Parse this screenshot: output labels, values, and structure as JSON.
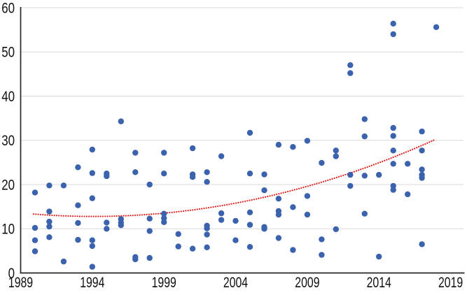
{
  "chart_data": {
    "type": "scatter",
    "title": "",
    "xlabel": "",
    "ylabel": "",
    "x_ticks": [
      1989,
      1994,
      1999,
      2004,
      2009,
      2014,
      2019
    ],
    "y_ticks": [
      0,
      10,
      20,
      30,
      40,
      50,
      60
    ],
    "xlim": [
      1989,
      2019.9
    ],
    "ylim": [
      0,
      60
    ],
    "grid": "horizontal-only",
    "legend": "none",
    "marker_color": "#3A62AD",
    "trend_color": "#DC241F",
    "grid_color": "#D8D8D8",
    "axis_color": "#262626",
    "label_color": "#111111",
    "points": [
      {
        "year": 1990,
        "values": [
          18.2,
          10.2,
          7.4,
          4.9
        ]
      },
      {
        "year": 1991,
        "values": [
          19.8,
          13.9,
          11.6,
          10.5,
          8.1
        ]
      },
      {
        "year": 1992,
        "values": [
          19.8,
          2.6
        ]
      },
      {
        "year": 1993,
        "values": [
          23.9,
          15.3,
          11.3,
          7.5
        ]
      },
      {
        "year": 1994,
        "values": [
          27.9,
          22.6,
          16.9,
          7.4,
          6.1,
          1.4
        ]
      },
      {
        "year": 1995,
        "values": [
          22.5,
          21.9,
          11.4,
          10.0
        ]
      },
      {
        "year": 1996,
        "values": [
          34.3,
          12.2,
          11.4,
          10.8
        ]
      },
      {
        "year": 1997,
        "values": [
          27.2,
          22.8,
          3.6,
          3.1
        ]
      },
      {
        "year": 1998,
        "values": [
          20.0,
          12.3,
          9.5,
          3.4
        ]
      },
      {
        "year": 1999,
        "values": [
          27.2,
          22.5,
          13.4,
          12.4,
          11.5
        ]
      },
      {
        "year": 2000,
        "values": [
          8.8,
          6.0
        ]
      },
      {
        "year": 2001,
        "values": [
          28.2,
          22.3,
          21.7,
          5.5
        ]
      },
      {
        "year": 2002,
        "values": [
          22.8,
          20.6,
          10.7,
          10.1,
          8.7,
          5.8
        ]
      },
      {
        "year": 2003,
        "values": [
          26.4,
          13.5,
          12.0
        ]
      },
      {
        "year": 2004,
        "values": [
          11.8,
          7.4
        ]
      },
      {
        "year": 2005,
        "values": [
          31.7,
          22.5,
          13.7,
          10.9,
          5.9
        ]
      },
      {
        "year": 2006,
        "values": [
          22.3,
          18.7,
          10.4,
          10.0
        ]
      },
      {
        "year": 2007,
        "values": [
          29.0,
          16.8,
          14.0,
          13.2,
          7.9
        ]
      },
      {
        "year": 2008,
        "values": [
          28.5,
          14.9,
          5.2
        ]
      },
      {
        "year": 2009,
        "values": [
          29.9,
          17.4,
          13.2
        ]
      },
      {
        "year": 2010,
        "values": [
          24.9,
          7.6,
          4.1
        ]
      },
      {
        "year": 2011,
        "values": [
          27.7,
          26.4,
          9.9
        ]
      },
      {
        "year": 2012,
        "values": [
          47.0,
          45.2,
          22.2,
          19.7
        ]
      },
      {
        "year": 2013,
        "values": [
          34.8,
          30.9,
          22.0,
          13.4
        ]
      },
      {
        "year": 2014,
        "values": [
          22.2,
          3.7
        ]
      },
      {
        "year": 2015,
        "values": [
          56.4,
          54.0,
          32.8,
          31.0,
          27.7,
          24.7,
          19.7,
          18.8
        ]
      },
      {
        "year": 2016,
        "values": [
          24.7,
          17.8
        ]
      },
      {
        "year": 2017,
        "values": [
          32.0,
          27.7,
          23.4,
          22.2,
          21.5,
          6.5
        ]
      },
      {
        "year": 2018,
        "values": [
          55.6
        ]
      }
    ],
    "trendline": {
      "style": "dotted",
      "model": "quadratic v = a + b*u + c*u^2 with u = year - 1990",
      "a": 13.3,
      "b": -0.25,
      "c": 0.0306,
      "start_year": 1989.9,
      "end_year": 2017.9
    }
  }
}
